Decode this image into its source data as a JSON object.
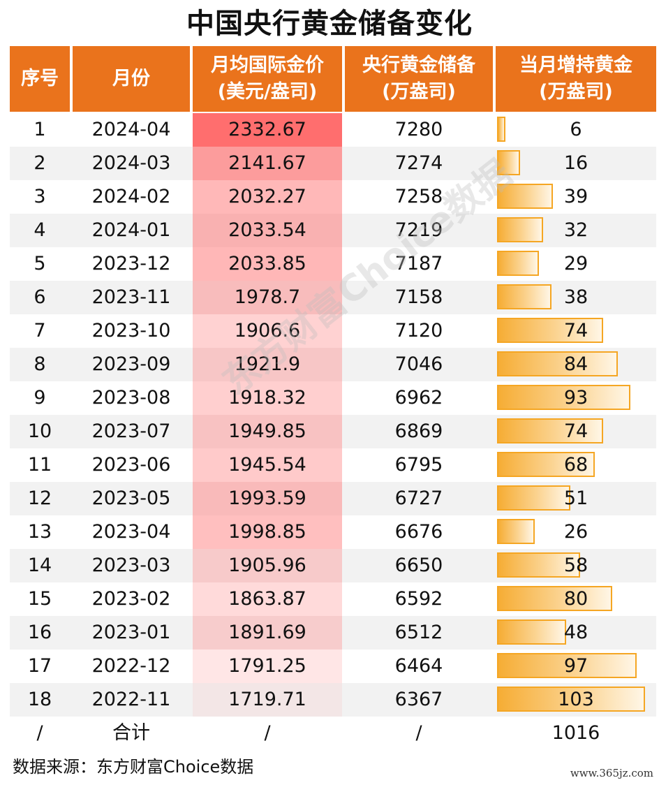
{
  "title": "中国央行黄金储备变化",
  "headers": {
    "idx": "序号",
    "month": "月份",
    "price_l1": "月均国际金价",
    "price_l2": "(美元/盎司)",
    "reserve_l1": "央行黄金储备",
    "reserve_l2": "(万盎司)",
    "inc_l1": "当月增持黄金",
    "inc_l2": "(万盎司)"
  },
  "chart_data": {
    "type": "table",
    "columns": [
      "序号",
      "月份",
      "月均国际金价(美元/盎司)",
      "央行黄金储备(万盎司)",
      "当月增持黄金(万盎司)"
    ],
    "rows": [
      {
        "idx": "1",
        "month": "2024-04",
        "price": "2332.67",
        "reserve": "7280",
        "increase": 6
      },
      {
        "idx": "2",
        "month": "2024-03",
        "price": "2141.67",
        "reserve": "7274",
        "increase": 16
      },
      {
        "idx": "3",
        "month": "2024-02",
        "price": "2032.27",
        "reserve": "7258",
        "increase": 39
      },
      {
        "idx": "4",
        "month": "2024-01",
        "price": "2033.54",
        "reserve": "7219",
        "increase": 32
      },
      {
        "idx": "5",
        "month": "2023-12",
        "price": "2033.85",
        "reserve": "7187",
        "increase": 29
      },
      {
        "idx": "6",
        "month": "2023-11",
        "price": "1978.7",
        "reserve": "7158",
        "increase": 38
      },
      {
        "idx": "7",
        "month": "2023-10",
        "price": "1906.6",
        "reserve": "7120",
        "increase": 74
      },
      {
        "idx": "8",
        "month": "2023-09",
        "price": "1921.9",
        "reserve": "7046",
        "increase": 84
      },
      {
        "idx": "9",
        "month": "2023-08",
        "price": "1918.32",
        "reserve": "6962",
        "increase": 93
      },
      {
        "idx": "10",
        "month": "2023-07",
        "price": "1949.85",
        "reserve": "6869",
        "increase": 74
      },
      {
        "idx": "11",
        "month": "2023-06",
        "price": "1945.54",
        "reserve": "6795",
        "increase": 68
      },
      {
        "idx": "12",
        "month": "2023-05",
        "price": "1993.59",
        "reserve": "6727",
        "increase": 51
      },
      {
        "idx": "13",
        "month": "2023-04",
        "price": "1998.85",
        "reserve": "6676",
        "increase": 26
      },
      {
        "idx": "14",
        "month": "2023-03",
        "price": "1905.96",
        "reserve": "6650",
        "increase": 58
      },
      {
        "idx": "15",
        "month": "2023-02",
        "price": "1863.87",
        "reserve": "6592",
        "increase": 80
      },
      {
        "idx": "16",
        "month": "2023-01",
        "price": "1891.69",
        "reserve": "6512",
        "increase": 48
      },
      {
        "idx": "17",
        "month": "2022-12",
        "price": "1791.25",
        "reserve": "6464",
        "increase": 97
      },
      {
        "idx": "18",
        "month": "2022-11",
        "price": "1719.71",
        "reserve": "6367",
        "increase": 103
      }
    ],
    "total": {
      "idx": "/",
      "month": "合计",
      "price": "/",
      "reserve": "/",
      "increase": "1016"
    }
  },
  "colors": {
    "header": "#ea731c",
    "price_heat_high": "#ff6b6b",
    "price_heat_low": "#ffffff",
    "bar_fill": "#f6ad35",
    "bar_border": "#f5a623",
    "row_alt": "#f2f2f2"
  },
  "watermark": "东方财富Choice数据",
  "source": "数据来源：东方财富Choice数据",
  "site": "www.365jz.com"
}
